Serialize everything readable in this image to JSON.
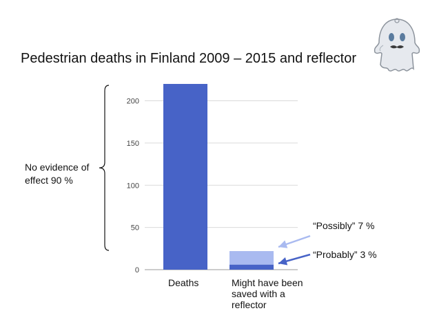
{
  "slide": {
    "title": "Pedestrian deaths in Finland 2009 – 2015 and reflector",
    "brace_label": "No evidence of effect 90 %"
  },
  "chart_data": {
    "type": "bar",
    "title": "Pedestrian deaths in Finland 2009 – 2015 and reflector",
    "categories": [
      "Deaths",
      "Might have been saved with a reflector"
    ],
    "series": [
      {
        "name": "Probably",
        "values": [
          220,
          6
        ],
        "color": "#4763c7"
      },
      {
        "name": "Possibly",
        "values": [
          0,
          16
        ],
        "color": "#a9baf0"
      }
    ],
    "yticks": [
      0,
      50,
      100,
      150,
      200
    ],
    "ylim": [
      0,
      220
    ],
    "grid": true,
    "annotations": [
      {
        "text": "“Possibly” 7 %",
        "target": "Possibly"
      },
      {
        "text": "“Probably” 3 %",
        "target": "Probably"
      }
    ],
    "colors": {
      "arrow_possibly": "#a9baf0",
      "arrow_probably": "#4763c7",
      "grid": "#d9d9d9"
    }
  },
  "icons": {
    "ghost": "ghost-icon"
  }
}
